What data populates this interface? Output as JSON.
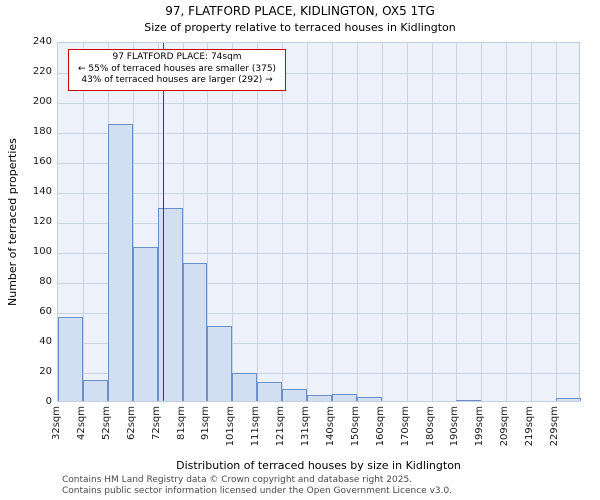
{
  "title": "97, FLATFORD PLACE, KIDLINGTON, OX5 1TG",
  "subtitle": "Size of property relative to terraced houses in Kidlington",
  "annotation": {
    "line1": "97 FLATFORD PLACE: 74sqm",
    "line2": "← 55% of terraced houses are smaller (375)",
    "line3": "43% of terraced houses are larger (292) →"
  },
  "chart_data": {
    "type": "bar",
    "title": "97, FLATFORD PLACE, KIDLINGTON, OX5 1TG — Size of property relative to terraced houses in Kidlington",
    "categories": [
      "32sqm",
      "42sqm",
      "52sqm",
      "62sqm",
      "72sqm",
      "81sqm",
      "91sqm",
      "101sqm",
      "111sqm",
      "121sqm",
      "131sqm",
      "140sqm",
      "150sqm",
      "160sqm",
      "170sqm",
      "180sqm",
      "190sqm",
      "199sqm",
      "209sqm",
      "219sqm",
      "229sqm"
    ],
    "values": [
      56,
      14,
      185,
      103,
      129,
      92,
      50,
      19,
      13,
      8,
      4,
      5,
      3,
      0,
      0,
      0,
      1,
      0,
      0,
      0,
      2
    ],
    "bin_edges": [
      32,
      42,
      52,
      62,
      72,
      81,
      91,
      101,
      111,
      121,
      131,
      140,
      150,
      160,
      170,
      180,
      190,
      199,
      209,
      219,
      229,
      239
    ],
    "marker": {
      "value": 74,
      "label": "74sqm",
      "color": "#cc0000"
    },
    "xlabel": "Distribution of terraced houses by size in Kidlington",
    "ylabel": "Number of terraced properties",
    "ylim": [
      0,
      240
    ],
    "ytick_step": 20,
    "grid": true,
    "legend": "none",
    "bar_fill": "#d2dff3",
    "bar_stroke": "#6b90c8",
    "plot_background": "#edf2fa",
    "grid_color": "#c8d3e6"
  },
  "footer": {
    "line1": "Contains HM Land Registry data © Crown copyright and database right 2025.",
    "line2": "Contains public sector information licensed under the Open Government Licence v3.0."
  }
}
